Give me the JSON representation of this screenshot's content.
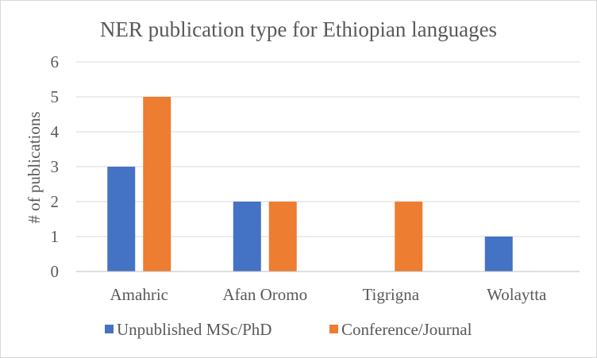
{
  "chart_data": {
    "type": "bar",
    "title": "NER publication  type for Ethiopian  languages",
    "xlabel": "",
    "ylabel": "# of publications",
    "categories": [
      "Amahric",
      "Afan Oromo",
      "Tigrigna",
      "Wolaytta"
    ],
    "series": [
      {
        "name": "Unpublished MSc/PhD",
        "color": "#4472c4",
        "values": [
          3,
          2,
          0,
          1
        ]
      },
      {
        "name": "Conference/Journal",
        "color": "#ed7d31",
        "values": [
          5,
          2,
          2,
          0
        ]
      }
    ],
    "ylim": [
      0,
      6
    ],
    "yticks": [
      0,
      1,
      2,
      3,
      4,
      5,
      6
    ],
    "grid": true,
    "legend": "bottom"
  }
}
